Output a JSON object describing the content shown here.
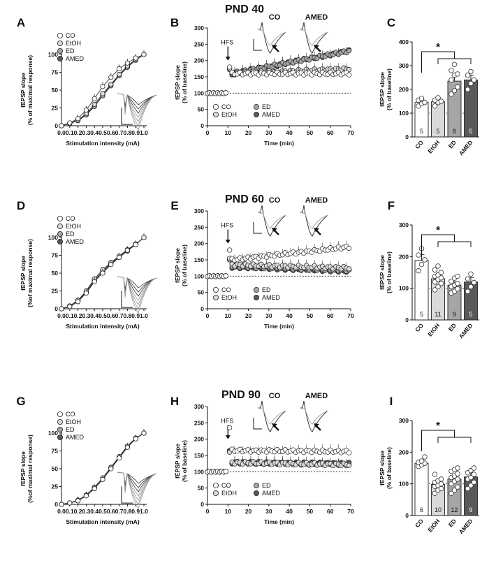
{
  "colors": {
    "CO": "#ffffff",
    "EtOH": "#d9d9d9",
    "ED": "#a6a6a6",
    "AMED": "#595959"
  },
  "rows": [
    {
      "title": "PND 40",
      "letters": [
        "A",
        "B",
        "C"
      ],
      "insets": [
        "CO",
        "AMED"
      ]
    },
    {
      "title": "PND 60",
      "letters": [
        "D",
        "E",
        "F"
      ],
      "insets": [
        "CO",
        "AMED"
      ]
    },
    {
      "title": "PND 90",
      "letters": [
        "G",
        "H",
        "I"
      ],
      "insets": [
        "CO",
        "AMED"
      ]
    }
  ],
  "chart_data": [
    {
      "panel": "A",
      "type": "line",
      "xlabel": "Stimulation intensity (mA)",
      "ylabel": [
        "fEPSP slope",
        "(% of maximal response)"
      ],
      "xlim": [
        0,
        1
      ],
      "ylim": [
        0,
        100
      ],
      "xticks": [
        "0.0",
        "0.1",
        "0.2",
        "0.3",
        "0.4",
        "0.5",
        "0.6",
        "0.7",
        "0.8",
        "0.9",
        "1.0"
      ],
      "yticks": [
        "0",
        "25",
        "50",
        "75",
        "100"
      ],
      "legend": [
        "CO",
        "EtOH",
        "ED",
        "AMED"
      ],
      "x": [
        0.0,
        0.1,
        0.2,
        0.3,
        0.4,
        0.5,
        0.6,
        0.7,
        0.8,
        0.9,
        1.0
      ],
      "series": [
        {
          "name": "CO",
          "values": [
            0,
            4,
            10,
            22,
            38,
            55,
            68,
            80,
            88,
            95,
            100
          ]
        },
        {
          "name": "EtOH",
          "values": [
            0,
            3,
            8,
            17,
            30,
            45,
            58,
            72,
            84,
            93,
            100
          ]
        },
        {
          "name": "ED",
          "values": [
            0,
            3,
            7,
            15,
            27,
            42,
            56,
            70,
            82,
            92,
            100
          ]
        },
        {
          "name": "AMED",
          "values": [
            0,
            3,
            8,
            16,
            28,
            43,
            57,
            71,
            83,
            92,
            100
          ]
        }
      ]
    },
    {
      "panel": "B",
      "type": "scatter",
      "xlabel": "Time (min)",
      "ylabel": [
        "fEPSP slope",
        "(% of baseline)"
      ],
      "xlim": [
        0,
        70
      ],
      "ylim": [
        0,
        300
      ],
      "marker": "HFS",
      "hfs_time": 10,
      "xticks": [
        "0",
        "10",
        "20",
        "30",
        "40",
        "50",
        "60",
        "70"
      ],
      "yticks": [
        "0",
        "50",
        "100",
        "150",
        "200",
        "250",
        "300"
      ],
      "legend": [
        "CO",
        "ED",
        "EtOH",
        "AMED"
      ],
      "series": [
        {
          "name": "CO",
          "peak": 180,
          "early": 160,
          "end": 160
        },
        {
          "name": "EtOH",
          "peak": 175,
          "early": 160,
          "end": 175
        },
        {
          "name": "ED",
          "peak": 175,
          "early": 160,
          "end": 230
        },
        {
          "name": "AMED",
          "peak": 172,
          "early": 160,
          "end": 230
        }
      ]
    },
    {
      "panel": "C",
      "type": "bar",
      "categories": [
        "CO",
        "EtOH",
        "ED",
        "AMED"
      ],
      "values": [
        145,
        148,
        235,
        240
      ],
      "errors": [
        12,
        12,
        25,
        20
      ],
      "n": [
        "5",
        "5",
        "8",
        "5"
      ],
      "ylabel": [
        "fEPSP slope",
        "(% of baseline)"
      ],
      "ylim": [
        0,
        400
      ],
      "yticks": [
        "0",
        "100",
        "200",
        "300",
        "400"
      ],
      "significance": "*",
      "points": [
        [
          130,
          140,
          145,
          155,
          162
        ],
        [
          130,
          145,
          150,
          155,
          165
        ],
        [
          180,
          195,
          210,
          240,
          260,
          265,
          280,
          305
        ],
        [
          200,
          225,
          240,
          260,
          275
        ]
      ]
    },
    {
      "panel": "D",
      "type": "line",
      "xlabel": "Stimulation intensity (mA)",
      "ylabel": [
        "fEPSP slope",
        "(%of maximal response)"
      ],
      "xlim": [
        0,
        1
      ],
      "ylim": [
        0,
        100
      ],
      "xticks": [
        "0.0",
        "0.1",
        "0.2",
        "0.3",
        "0.4",
        "0.5",
        "0.6",
        "0.7",
        "0.8",
        "0.9",
        "1.0"
      ],
      "yticks": [
        "0",
        "25",
        "50",
        "75",
        "100"
      ],
      "legend": [
        "CO",
        "EtOH",
        "ED",
        "AMED"
      ],
      "x": [
        0.0,
        0.1,
        0.2,
        0.3,
        0.4,
        0.5,
        0.6,
        0.7,
        0.8,
        0.9,
        1.0
      ],
      "series": [
        {
          "name": "CO",
          "values": [
            0,
            3,
            10,
            22,
            38,
            50,
            62,
            72,
            82,
            90,
            100
          ]
        },
        {
          "name": "EtOH",
          "values": [
            0,
            4,
            12,
            25,
            42,
            55,
            65,
            74,
            83,
            91,
            100
          ]
        },
        {
          "name": "ED",
          "values": [
            0,
            4,
            11,
            24,
            40,
            53,
            64,
            73,
            82,
            90,
            100
          ]
        },
        {
          "name": "AMED",
          "values": [
            0,
            3,
            10,
            23,
            39,
            52,
            63,
            72,
            81,
            90,
            100
          ]
        }
      ]
    },
    {
      "panel": "E",
      "type": "scatter",
      "xlabel": "Time (min)",
      "ylabel": [
        "fEPSP slope",
        "(% of baseline)"
      ],
      "xlim": [
        0,
        70
      ],
      "ylim": [
        0,
        300
      ],
      "marker": "HFS",
      "hfs_time": 10,
      "xticks": [
        "0",
        "10",
        "20",
        "30",
        "40",
        "50",
        "60",
        "70"
      ],
      "yticks": [
        "0",
        "50",
        "100",
        "150",
        "200",
        "250",
        "300"
      ],
      "legend": [
        "CO",
        "ED",
        "EtOH",
        "AMED"
      ],
      "series": [
        {
          "name": "CO",
          "peak": 180,
          "early": 150,
          "end": 190
        },
        {
          "name": "EtOH",
          "peak": 155,
          "early": 135,
          "end": 125
        },
        {
          "name": "ED",
          "peak": 150,
          "early": 130,
          "end": 118
        },
        {
          "name": "AMED",
          "peak": 150,
          "early": 128,
          "end": 115
        }
      ]
    },
    {
      "panel": "F",
      "type": "bar",
      "categories": [
        "CO",
        "EtOH",
        "ED",
        "AMED"
      ],
      "values": [
        188,
        130,
        110,
        120
      ],
      "errors": [
        18,
        12,
        10,
        14
      ],
      "n": [
        "5",
        "11",
        "9",
        "5"
      ],
      "ylabel": [
        "fEPSP slope",
        "(% of baseline)"
      ],
      "ylim": [
        0,
        300
      ],
      "yticks": [
        "0",
        "100",
        "200",
        "300"
      ],
      "significance": "*",
      "points": [
        [
          155,
          175,
          190,
          205,
          225
        ],
        [
          95,
          105,
          115,
          120,
          128,
          133,
          138,
          142,
          150,
          158,
          170
        ],
        [
          85,
          90,
          98,
          105,
          110,
          115,
          122,
          132,
          138
        ],
        [
          90,
          105,
          118,
          130,
          145
        ]
      ]
    },
    {
      "panel": "G",
      "type": "line",
      "xlabel": "Stimulation intensity (mA)",
      "ylabel": [
        "fEPSP slope",
        "(%of maximal response)"
      ],
      "xlim": [
        0,
        1
      ],
      "ylim": [
        0,
        100
      ],
      "xticks": [
        "0.0",
        "0.1",
        "0.2",
        "0.3",
        "0.4",
        "0.5",
        "0.6",
        "0.7",
        "0.8",
        "0.9",
        "1.0"
      ],
      "yticks": [
        "0",
        "25",
        "50",
        "75",
        "100"
      ],
      "legend": [
        "CO",
        "EtOH",
        "ED",
        "AMED"
      ],
      "x": [
        0.0,
        0.1,
        0.2,
        0.3,
        0.4,
        0.5,
        0.6,
        0.7,
        0.8,
        0.9,
        1.0
      ],
      "series": [
        {
          "name": "CO",
          "values": [
            0,
            2,
            5,
            12,
            22,
            35,
            50,
            65,
            80,
            92,
            100
          ]
        },
        {
          "name": "EtOH",
          "values": [
            0,
            2,
            6,
            13,
            24,
            37,
            52,
            67,
            82,
            93,
            100
          ]
        },
        {
          "name": "ED",
          "values": [
            0,
            2,
            5,
            12,
            23,
            36,
            51,
            66,
            81,
            92,
            100
          ]
        },
        {
          "name": "AMED",
          "values": [
            0,
            2,
            5,
            13,
            24,
            36,
            51,
            66,
            81,
            92,
            100
          ]
        }
      ]
    },
    {
      "panel": "H",
      "type": "scatter",
      "xlabel": "Time (min)",
      "ylabel": [
        "fEPSP slope",
        "(% of baseline)"
      ],
      "xlim": [
        0,
        70
      ],
      "ylim": [
        0,
        300
      ],
      "marker": "HFS",
      "hfs_time": 10,
      "xticks": [
        "0",
        "10",
        "20",
        "30",
        "40",
        "50",
        "60",
        "70"
      ],
      "yticks": [
        "0",
        "50",
        "100",
        "150",
        "200",
        "250",
        "300"
      ],
      "legend": [
        "CO",
        "ED",
        "EtOH",
        "AMED"
      ],
      "series": [
        {
          "name": "CO",
          "peak": 235,
          "early": 165,
          "end": 162
        },
        {
          "name": "EtOH",
          "peak": 160,
          "early": 128,
          "end": 122
        },
        {
          "name": "ED",
          "peak": 162,
          "early": 128,
          "end": 122
        },
        {
          "name": "AMED",
          "peak": 165,
          "early": 128,
          "end": 125
        }
      ]
    },
    {
      "panel": "I",
      "type": "bar",
      "categories": [
        "CO",
        "EtOH",
        "ED",
        "AMED"
      ],
      "values": [
        165,
        98,
        115,
        122
      ],
      "errors": [
        8,
        10,
        12,
        12
      ],
      "n": [
        "6",
        "10",
        "12",
        "9"
      ],
      "ylabel": [
        "fEPSP slope",
        "(% of baseline)"
      ],
      "ylim": [
        0,
        300
      ],
      "yticks": [
        "0",
        "100",
        "200",
        "300"
      ],
      "significance": "*",
      "points": [
        [
          155,
          160,
          165,
          168,
          172,
          185
        ],
        [
          70,
          80,
          85,
          92,
          95,
          100,
          105,
          110,
          115,
          130
        ],
        [
          70,
          80,
          90,
          100,
          108,
          115,
          120,
          125,
          132,
          140,
          145,
          150
        ],
        [
          85,
          95,
          105,
          115,
          120,
          130,
          135,
          142,
          150
        ]
      ]
    }
  ]
}
